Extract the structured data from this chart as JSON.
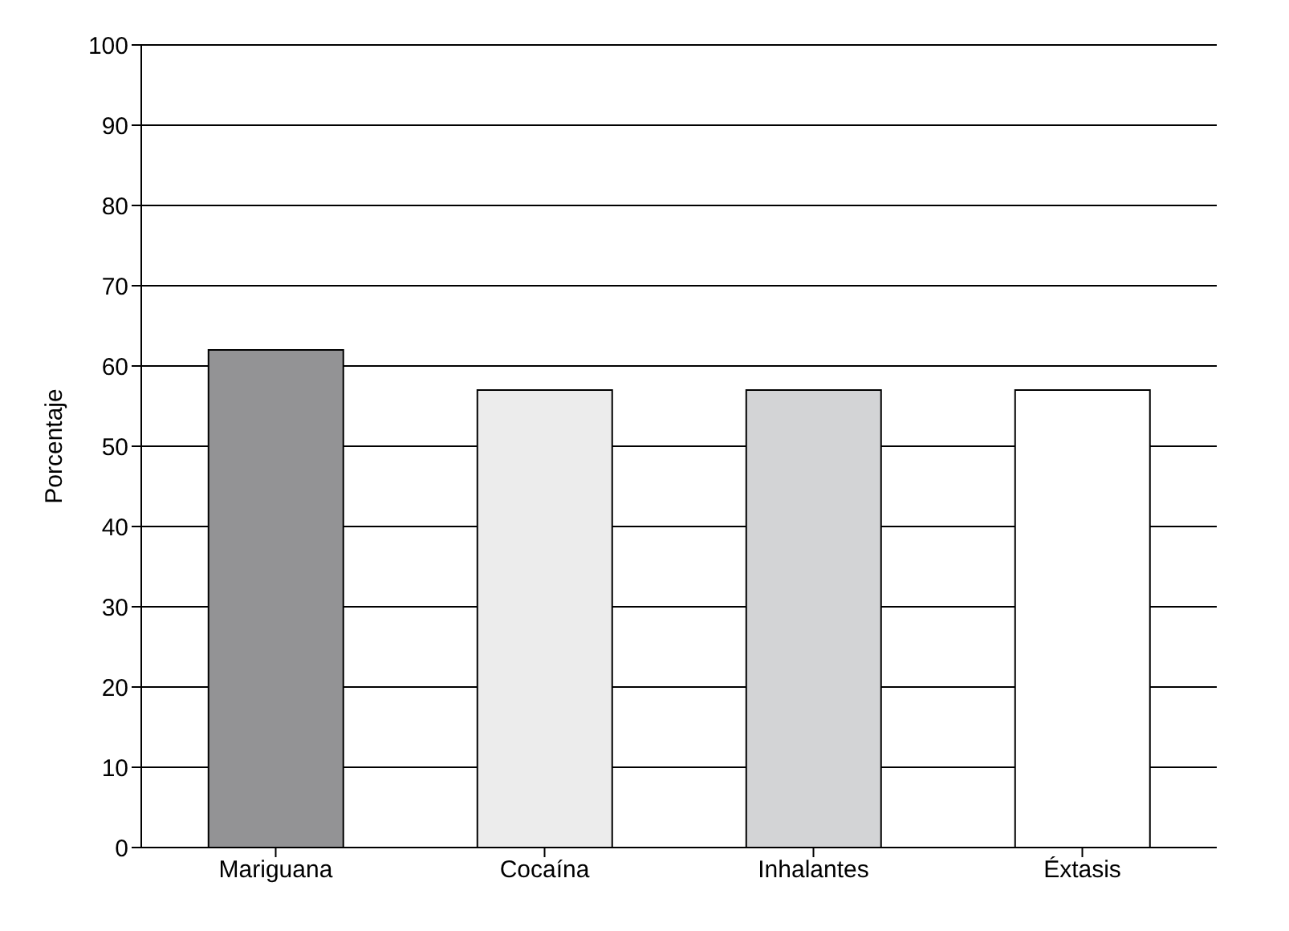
{
  "chart_data": {
    "type": "bar",
    "ylabel": "Porcentaje",
    "categories": [
      "Mariguana",
      "Cocaína",
      "Inhalantes",
      "Éxtasis"
    ],
    "values": [
      62,
      57,
      57,
      57
    ],
    "colors": [
      "#939395",
      "#ececec",
      "#d3d4d6",
      "#ffffff"
    ],
    "ylim": [
      0,
      100
    ],
    "yticks": [
      0,
      10,
      20,
      30,
      40,
      50,
      60,
      70,
      80,
      90,
      100
    ],
    "grid": "y"
  }
}
